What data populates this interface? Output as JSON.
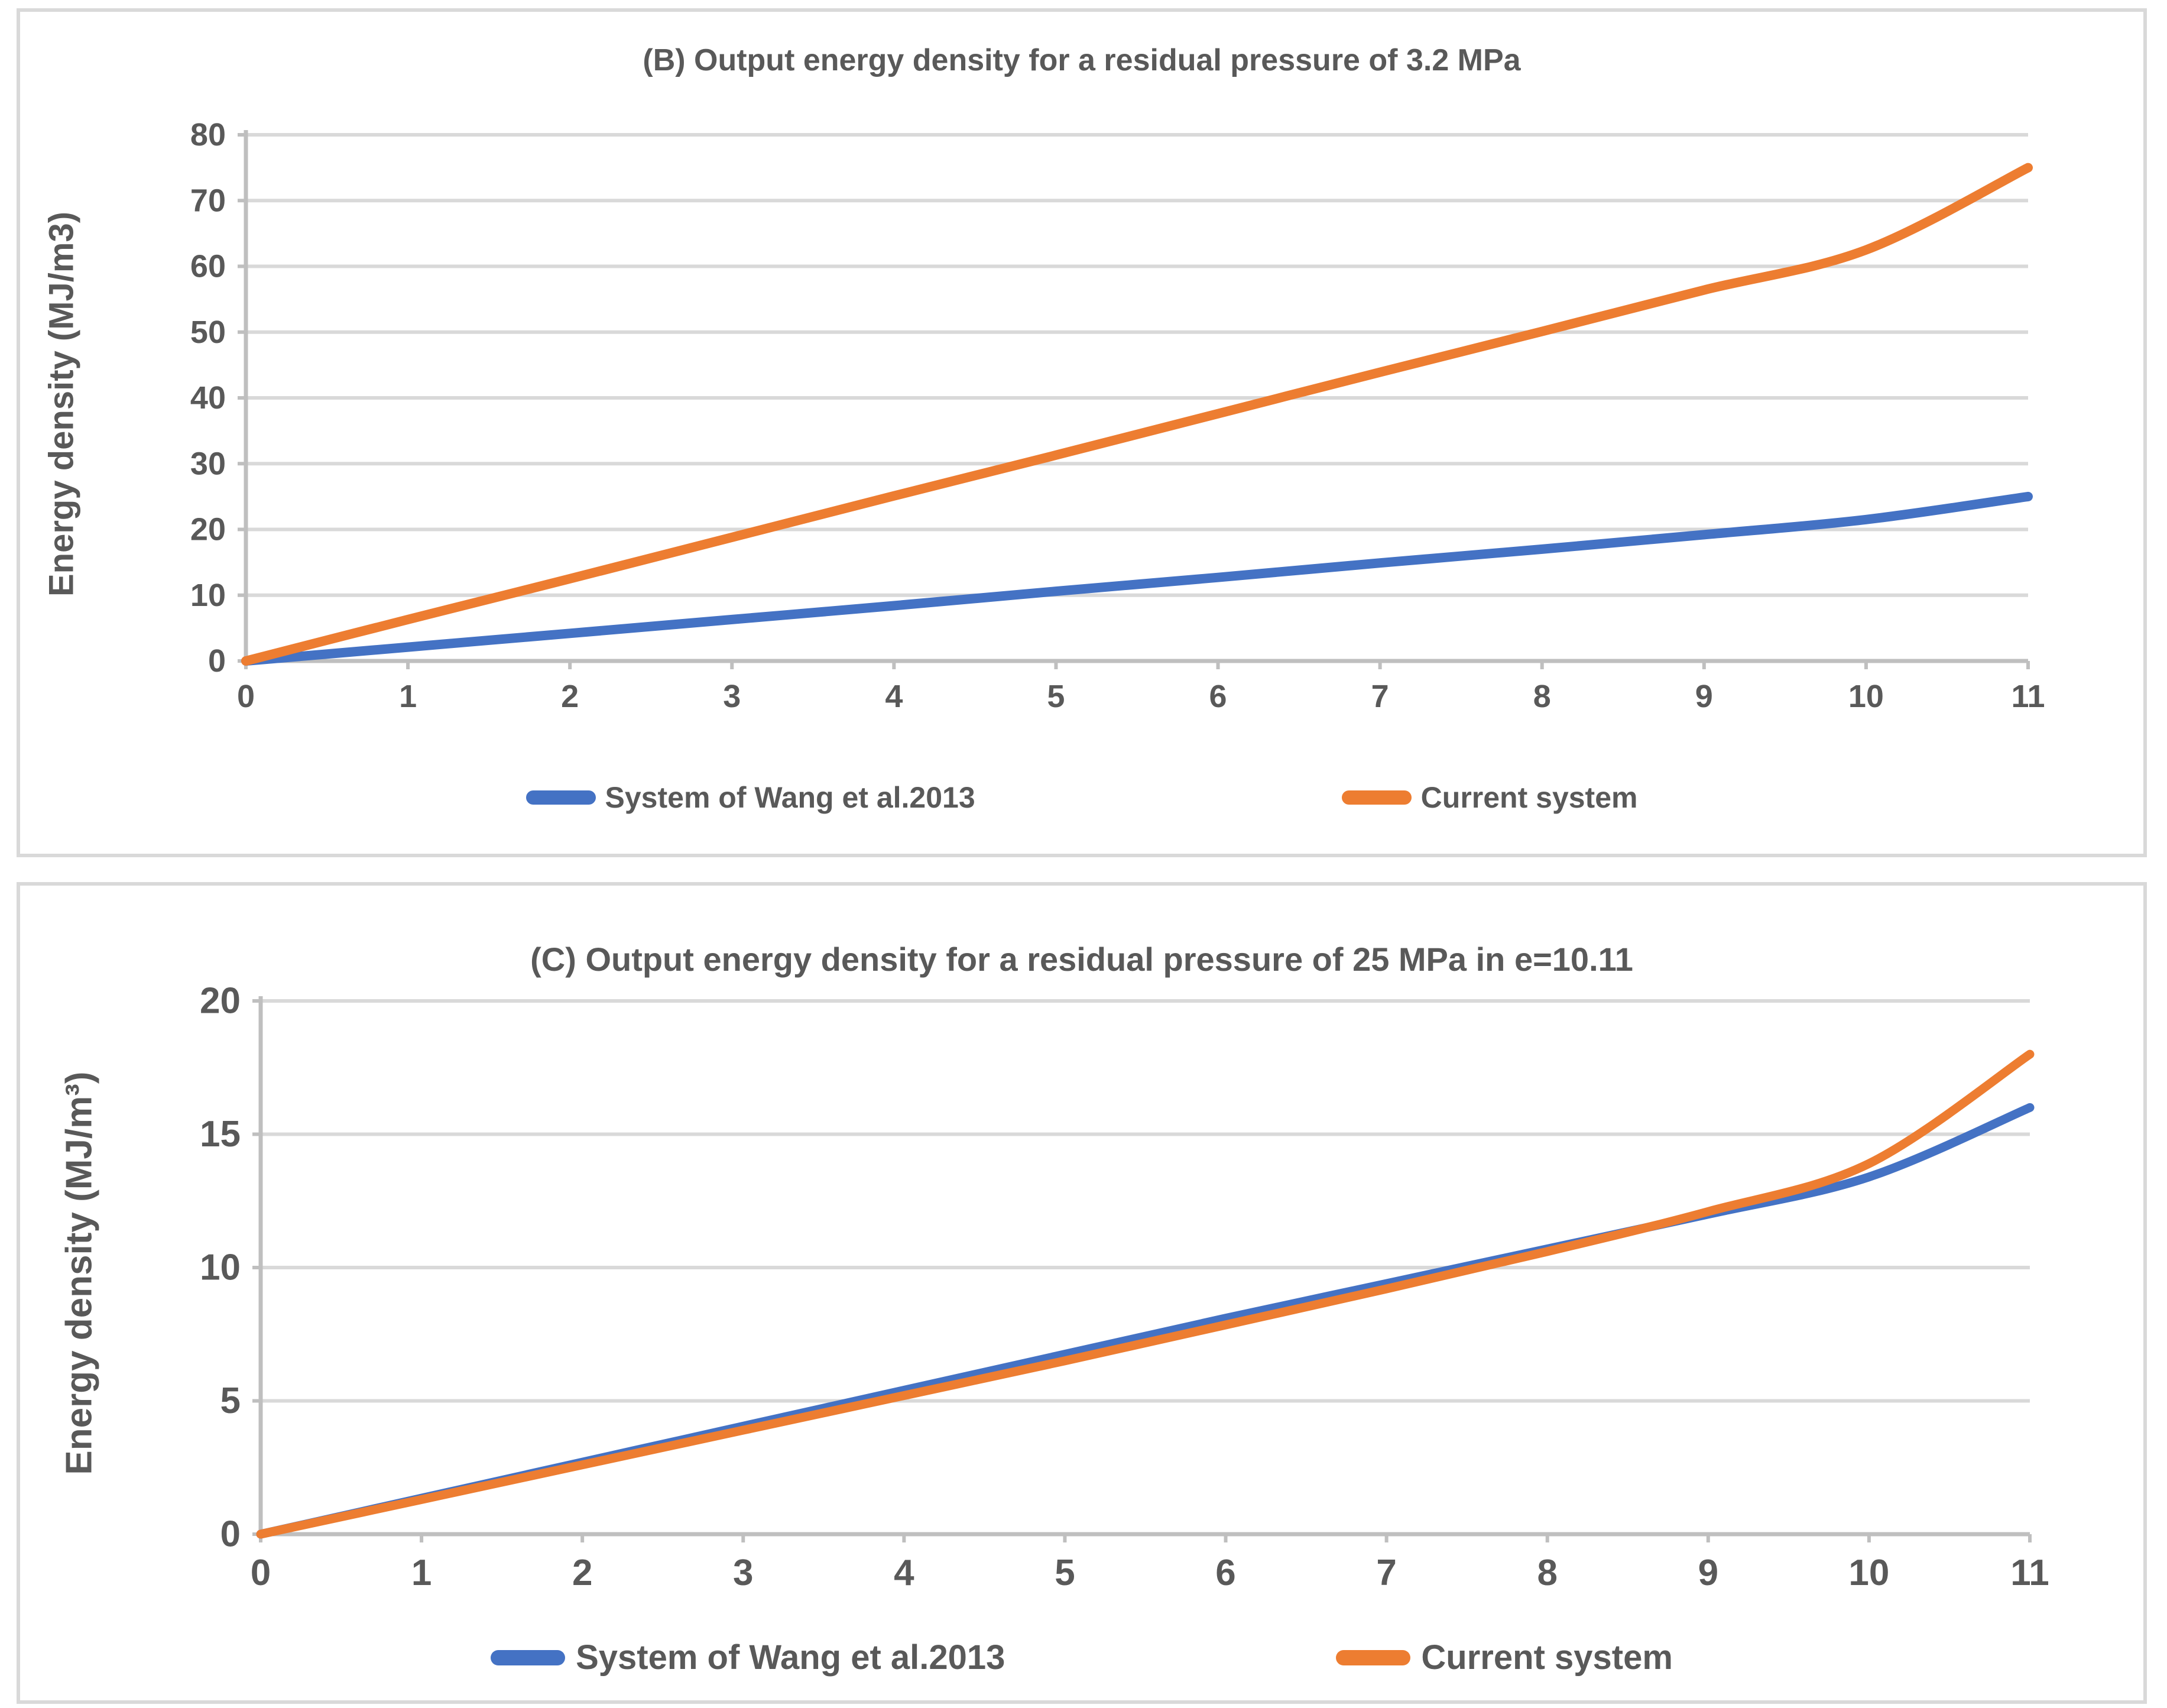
{
  "colors": {
    "wang_blue": "#4472C4",
    "current_orange": "#ED7D31",
    "text_gray": "#595959",
    "gridline": "#D9D9D9",
    "axis_line": "#BFBFBF",
    "panel_border": "#D9D9D9",
    "background": "#FFFFFF"
  },
  "chart_data": [
    {
      "id": "B",
      "type": "line",
      "title": "(B) Output energy density for a residual pressure of 3.2 MPa",
      "ylabel": "Energy density (MJ/m3)",
      "xlabel": "",
      "x": [
        0,
        1,
        2,
        3,
        4,
        5,
        6,
        7,
        8,
        9,
        10,
        11
      ],
      "xticks": [
        0,
        1,
        2,
        3,
        4,
        5,
        6,
        7,
        8,
        9,
        10,
        11
      ],
      "yticks": [
        0,
        10,
        20,
        30,
        40,
        50,
        60,
        70,
        80
      ],
      "ylim": [
        0,
        80
      ],
      "xlim": [
        0,
        11
      ],
      "grid": true,
      "legend_position": "bottom",
      "series": [
        {
          "name": "System of Wang et al.2013",
          "color_key": "wang_blue",
          "values": [
            0,
            2.1,
            4.2,
            6.3,
            8.4,
            10.6,
            12.7,
            14.9,
            17.0,
            19.2,
            21.5,
            25.0
          ]
        },
        {
          "name": "Current system",
          "color_key": "current_orange",
          "values": [
            0,
            6.3,
            12.5,
            18.8,
            25.1,
            31.3,
            37.6,
            43.9,
            50.1,
            56.4,
            62.5,
            75.0
          ]
        }
      ]
    },
    {
      "id": "C",
      "type": "line",
      "title": "(C) Output energy density for a residual pressure of 25 MPa in e=10.11",
      "ylabel": "Energy density (MJ/m³)",
      "xlabel": "",
      "x": [
        0,
        1,
        2,
        3,
        4,
        5,
        6,
        7,
        8,
        9,
        10,
        11
      ],
      "xticks": [
        0,
        1,
        2,
        3,
        4,
        5,
        6,
        7,
        8,
        9,
        10,
        11
      ],
      "yticks": [
        0,
        5,
        10,
        15,
        20
      ],
      "ylim": [
        0,
        20
      ],
      "xlim": [
        0,
        11
      ],
      "grid": true,
      "legend_position": "bottom",
      "series": [
        {
          "name": "System of Wang et al.2013",
          "color_key": "wang_blue",
          "values": [
            0,
            1.35,
            2.7,
            4.05,
            5.4,
            6.75,
            8.1,
            9.4,
            10.7,
            12.0,
            13.4,
            16.0
          ]
        },
        {
          "name": "Current system",
          "color_key": "current_orange",
          "values": [
            0,
            1.3,
            2.6,
            3.9,
            5.2,
            6.5,
            7.85,
            9.2,
            10.6,
            12.1,
            13.9,
            18.0
          ]
        }
      ]
    }
  ]
}
